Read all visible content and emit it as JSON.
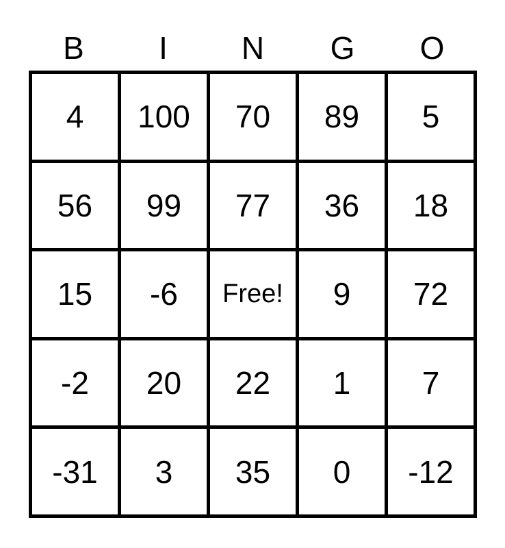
{
  "header": [
    "B",
    "I",
    "N",
    "G",
    "O"
  ],
  "rows": [
    [
      "4",
      "100",
      "70",
      "89",
      "5"
    ],
    [
      "56",
      "99",
      "77",
      "36",
      "18"
    ],
    [
      "15",
      "-6",
      "Free!",
      "9",
      "72"
    ],
    [
      "-2",
      "20",
      "22",
      "1",
      "7"
    ],
    [
      "-31",
      "3",
      "35",
      "0",
      "-12"
    ]
  ]
}
